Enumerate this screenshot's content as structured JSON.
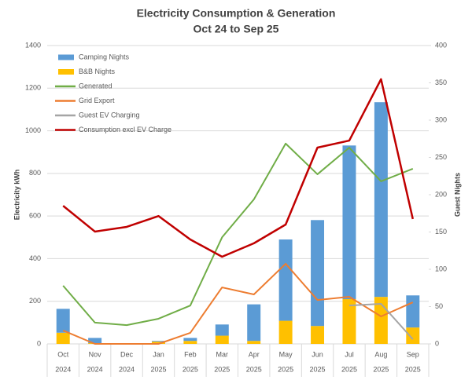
{
  "chart_data": {
    "type": "combo",
    "title": "Electricity Consumption & Generation",
    "subtitle": "Oct 24 to Sep 25",
    "y_label": "Electricity kWh",
    "y2_label": "Guest Nights",
    "categories": [
      "Oct",
      "Nov",
      "Dec",
      "Jan",
      "Feb",
      "Mar",
      "Apr",
      "May",
      "Jun",
      "Jul",
      "Aug",
      "Sep"
    ],
    "category_years": [
      "2024",
      "2024",
      "2024",
      "2025",
      "2025",
      "2025",
      "2025",
      "2025",
      "2025",
      "2025",
      "2025",
      "2025"
    ],
    "ylim": [
      0,
      1400
    ],
    "yticks": [
      0,
      200,
      400,
      600,
      800,
      1000,
      1200,
      1400
    ],
    "y2lim": [
      0,
      400
    ],
    "y2ticks": [
      0,
      50,
      100,
      150,
      200,
      250,
      300,
      350,
      400
    ],
    "grid": true,
    "legend": "top-left",
    "series": [
      {
        "name": "Camping Nights",
        "type": "bar",
        "axis": "y2",
        "color": "#5b9bd5",
        "values": [
          32,
          7,
          0,
          1,
          4,
          15,
          49,
          109,
          142,
          206,
          261,
          43
        ]
      },
      {
        "name": "B&B Nights",
        "type": "bar",
        "axis": "y2",
        "color": "#ffc000",
        "values": [
          15,
          1,
          0,
          3,
          4,
          11,
          4,
          31,
          24,
          60,
          63,
          22
        ]
      },
      {
        "name": "Generated",
        "type": "line",
        "axis": "y",
        "color": "#70ad47",
        "values": [
          273,
          100,
          88,
          118,
          180,
          500,
          678,
          940,
          796,
          921,
          763,
          822
        ]
      },
      {
        "name": "Grid Export",
        "type": "line",
        "axis": "y",
        "color": "#ed7d31",
        "values": [
          63,
          0,
          0,
          0,
          52,
          265,
          232,
          376,
          206,
          221,
          129,
          195
        ]
      },
      {
        "name": "Guest EV Charging",
        "type": "line",
        "axis": "y",
        "color": "#a5a5a5",
        "values": [
          null,
          null,
          null,
          null,
          null,
          null,
          null,
          null,
          null,
          180,
          188,
          22
        ]
      },
      {
        "name": "Consumption excl EV Charge",
        "type": "line",
        "axis": "y",
        "color": "#c00000",
        "values": [
          648,
          527,
          549,
          600,
          490,
          409,
          472,
          560,
          921,
          954,
          1242,
          586
        ]
      }
    ]
  }
}
